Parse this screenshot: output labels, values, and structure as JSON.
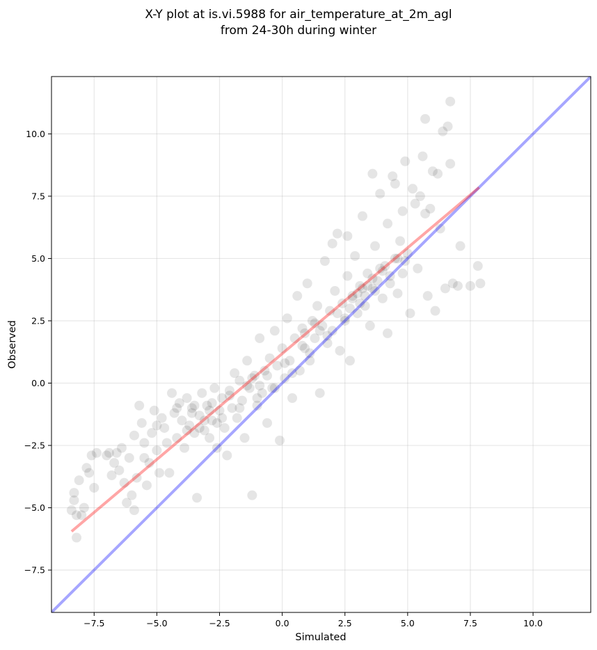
{
  "chart_data": {
    "type": "scatter",
    "title_lines": [
      "X-Y plot at is.vi.5988 for air_temperature_at_2m_agl",
      "from 24-30h during winter"
    ],
    "xlabel": "Simulated",
    "ylabel": "Observed",
    "xlim": [
      -9.2,
      12.3
    ],
    "ylim": [
      -9.2,
      12.3
    ],
    "xticks": [
      -7.5,
      -5.0,
      -2.5,
      0.0,
      2.5,
      5.0,
      7.5,
      10.0
    ],
    "yticks": [
      -7.5,
      -5.0,
      -2.5,
      0.0,
      2.5,
      5.0,
      7.5,
      10.0
    ],
    "xtick_labels": [
      "−7.5",
      "−5.0",
      "−2.5",
      "0.0",
      "2.5",
      "5.0",
      "7.5",
      "10.0"
    ],
    "ytick_labels": [
      "−7.5",
      "−5.0",
      "−2.5",
      "0.0",
      "2.5",
      "5.0",
      "7.5",
      "10.0"
    ],
    "grid": true,
    "point_color": "#000000",
    "point_alpha": 0.1,
    "one_to_one_line": {
      "color": "#0000ff",
      "alpha": 0.35,
      "x": [
        -9.2,
        12.3
      ],
      "y": [
        -9.2,
        12.3
      ]
    },
    "regression_line": {
      "color": "#ff0000",
      "alpha": 0.35,
      "x": [
        -8.4,
        7.85
      ],
      "y": [
        -5.95,
        7.85
      ]
    },
    "points": [
      [
        -8.4,
        -5.1
      ],
      [
        -8.3,
        -4.7
      ],
      [
        -8.3,
        -4.4
      ],
      [
        -8.2,
        -5.3
      ],
      [
        -8.2,
        -6.2
      ],
      [
        -8.1,
        -3.9
      ],
      [
        -7.9,
        -5.0
      ],
      [
        -7.8,
        -3.4
      ],
      [
        -7.7,
        -3.6
      ],
      [
        -7.6,
        -2.9
      ],
      [
        -7.4,
        -2.8
      ],
      [
        -7.0,
        -2.9
      ],
      [
        -6.9,
        -2.8
      ],
      [
        -6.7,
        -3.2
      ],
      [
        -6.6,
        -2.8
      ],
      [
        -6.5,
        -3.5
      ],
      [
        -6.3,
        -4.0
      ],
      [
        -6.2,
        -4.8
      ],
      [
        -6.1,
        -3.0
      ],
      [
        -6.0,
        -4.5
      ],
      [
        -5.9,
        -5.1
      ],
      [
        -5.8,
        -3.8
      ],
      [
        -5.7,
        -0.9
      ],
      [
        -5.6,
        -1.6
      ],
      [
        -5.5,
        -2.4
      ],
      [
        -5.4,
        -4.1
      ],
      [
        -5.3,
        -3.2
      ],
      [
        -5.2,
        -2.0
      ],
      [
        -5.1,
        -1.1
      ],
      [
        -5.0,
        -2.7
      ],
      [
        -4.9,
        -3.6
      ],
      [
        -4.8,
        -1.4
      ],
      [
        -4.7,
        -1.8
      ],
      [
        -4.5,
        -3.6
      ],
      [
        -4.4,
        -0.4
      ],
      [
        -4.3,
        -1.2
      ],
      [
        -4.2,
        -2.2
      ],
      [
        -4.1,
        -0.8
      ],
      [
        -4.0,
        -1.5
      ],
      [
        -3.9,
        -2.6
      ],
      [
        -3.8,
        -0.6
      ],
      [
        -3.7,
        -1.7
      ],
      [
        -3.6,
        -1.0
      ],
      [
        -3.5,
        -2.0
      ],
      [
        -3.4,
        -4.6
      ],
      [
        -3.3,
        -1.3
      ],
      [
        -3.2,
        -0.4
      ],
      [
        -3.1,
        -1.9
      ],
      [
        -3.0,
        -0.9
      ],
      [
        -2.9,
        -2.2
      ],
      [
        -2.8,
        -1.5
      ],
      [
        -2.7,
        -0.2
      ],
      [
        -2.6,
        -2.6
      ],
      [
        -2.5,
        -1.1
      ],
      [
        -2.4,
        -0.6
      ],
      [
        -2.3,
        -1.8
      ],
      [
        -2.2,
        -2.9
      ],
      [
        -2.1,
        -0.3
      ],
      [
        -2.0,
        -1.0
      ],
      [
        -1.9,
        0.4
      ],
      [
        -1.8,
        -1.4
      ],
      [
        -1.7,
        0.1
      ],
      [
        -1.6,
        -0.7
      ],
      [
        -1.5,
        -2.2
      ],
      [
        -1.4,
        0.9
      ],
      [
        -1.3,
        -0.2
      ],
      [
        -1.2,
        -4.5
      ],
      [
        -1.1,
        0.3
      ],
      [
        -1.0,
        -0.9
      ],
      [
        -0.9,
        1.8
      ],
      [
        -0.8,
        -0.4
      ],
      [
        -0.7,
        0.5
      ],
      [
        -0.6,
        -1.6
      ],
      [
        -0.5,
        1.0
      ],
      [
        -0.4,
        -0.2
      ],
      [
        -0.3,
        2.1
      ],
      [
        -0.2,
        0.7
      ],
      [
        -0.1,
        -2.3
      ],
      [
        0.0,
        1.4
      ],
      [
        0.1,
        0.2
      ],
      [
        0.2,
        2.6
      ],
      [
        0.3,
        0.9
      ],
      [
        0.4,
        -0.6
      ],
      [
        0.5,
        1.8
      ],
      [
        0.6,
        3.5
      ],
      [
        0.7,
        0.5
      ],
      [
        0.8,
        2.2
      ],
      [
        0.9,
        1.4
      ],
      [
        1.0,
        4.0
      ],
      [
        1.1,
        0.9
      ],
      [
        1.2,
        2.5
      ],
      [
        1.3,
        1.8
      ],
      [
        1.4,
        3.1
      ],
      [
        1.5,
        -0.4
      ],
      [
        1.6,
        2.3
      ],
      [
        1.7,
        4.9
      ],
      [
        1.8,
        1.6
      ],
      [
        1.9,
        2.9
      ],
      [
        2.0,
        2.1
      ],
      [
        2.1,
        3.7
      ],
      [
        2.2,
        6.0
      ],
      [
        2.3,
        1.3
      ],
      [
        2.4,
        3.2
      ],
      [
        2.5,
        2.6
      ],
      [
        2.6,
        4.3
      ],
      [
        2.7,
        0.9
      ],
      [
        2.8,
        3.5
      ],
      [
        2.9,
        5.1
      ],
      [
        3.0,
        2.8
      ],
      [
        3.1,
        3.9
      ],
      [
        3.2,
        6.7
      ],
      [
        3.3,
        3.1
      ],
      [
        3.4,
        4.4
      ],
      [
        3.5,
        2.3
      ],
      [
        3.6,
        3.8
      ],
      [
        3.7,
        5.5
      ],
      [
        3.8,
        4.1
      ],
      [
        3.9,
        7.6
      ],
      [
        4.0,
        3.4
      ],
      [
        4.1,
        4.7
      ],
      [
        4.2,
        2.0
      ],
      [
        4.3,
        4.0
      ],
      [
        4.4,
        8.3
      ],
      [
        4.5,
        5.0
      ],
      [
        4.6,
        3.6
      ],
      [
        4.7,
        5.7
      ],
      [
        4.8,
        4.4
      ],
      [
        4.9,
        8.9
      ],
      [
        5.0,
        5.2
      ],
      [
        5.1,
        2.8
      ],
      [
        5.3,
        7.2
      ],
      [
        5.4,
        4.6
      ],
      [
        5.6,
        9.1
      ],
      [
        5.7,
        6.8
      ],
      [
        5.8,
        3.5
      ],
      [
        6.0,
        8.5
      ],
      [
        6.1,
        2.9
      ],
      [
        6.3,
        6.2
      ],
      [
        6.4,
        10.1
      ],
      [
        6.5,
        3.8
      ],
      [
        6.6,
        10.3
      ],
      [
        6.7,
        8.8
      ],
      [
        6.8,
        4.0
      ],
      [
        7.0,
        3.9
      ],
      [
        7.1,
        5.5
      ],
      [
        7.5,
        3.9
      ],
      [
        7.8,
        4.7
      ],
      [
        7.9,
        4.0
      ],
      [
        6.7,
        11.3
      ],
      [
        5.7,
        10.6
      ],
      [
        -8.0,
        -5.3
      ],
      [
        -7.5,
        -4.2
      ],
      [
        -6.8,
        -3.7
      ],
      [
        -6.4,
        -2.6
      ],
      [
        -5.9,
        -2.1
      ],
      [
        -5.5,
        -3.0
      ],
      [
        -5.0,
        -1.7
      ],
      [
        -4.6,
        -2.4
      ],
      [
        -4.2,
        -1.0
      ],
      [
        -3.8,
        -1.9
      ],
      [
        -3.5,
        -0.9
      ],
      [
        -3.1,
        -1.5
      ],
      [
        -2.8,
        -0.8
      ],
      [
        -2.4,
        -1.4
      ],
      [
        -2.1,
        -0.5
      ],
      [
        -1.7,
        -1.0
      ],
      [
        -1.4,
        -0.1
      ],
      [
        -1.0,
        -0.6
      ],
      [
        -0.6,
        0.3
      ],
      [
        -0.3,
        -0.2
      ],
      [
        0.1,
        0.8
      ],
      [
        0.4,
        0.4
      ],
      [
        0.8,
        1.5
      ],
      [
        1.1,
        1.2
      ],
      [
        1.5,
        2.1
      ],
      [
        1.8,
        1.9
      ],
      [
        2.2,
        2.8
      ],
      [
        2.5,
        2.5
      ],
      [
        2.8,
        3.4
      ],
      [
        3.1,
        3.2
      ],
      [
        3.4,
        3.9
      ],
      [
        3.7,
        3.7
      ],
      [
        4.0,
        4.5
      ],
      [
        4.3,
        4.3
      ],
      [
        4.6,
        5.0
      ],
      [
        4.9,
        4.9
      ],
      [
        3.0,
        3.6
      ],
      [
        3.3,
        3.5
      ],
      [
        3.6,
        4.2
      ],
      [
        3.9,
        4.6
      ],
      [
        -3.6,
        -1.2
      ],
      [
        -3.3,
        -1.8
      ],
      [
        -2.9,
        -1.1
      ],
      [
        -2.6,
        -1.6
      ],
      [
        -1.2,
        0.2
      ],
      [
        -0.9,
        -0.1
      ],
      [
        0.9,
        2.0
      ],
      [
        1.3,
        2.4
      ],
      [
        2.7,
        3.0
      ],
      [
        3.2,
        3.8
      ],
      [
        4.2,
        6.4
      ],
      [
        4.8,
        6.9
      ],
      [
        5.2,
        7.8
      ],
      [
        5.5,
        7.5
      ],
      [
        6.2,
        8.4
      ],
      [
        5.9,
        7.0
      ],
      [
        4.5,
        8.0
      ],
      [
        3.6,
        8.4
      ],
      [
        2.6,
        5.9
      ],
      [
        2.0,
        5.6
      ]
    ]
  }
}
